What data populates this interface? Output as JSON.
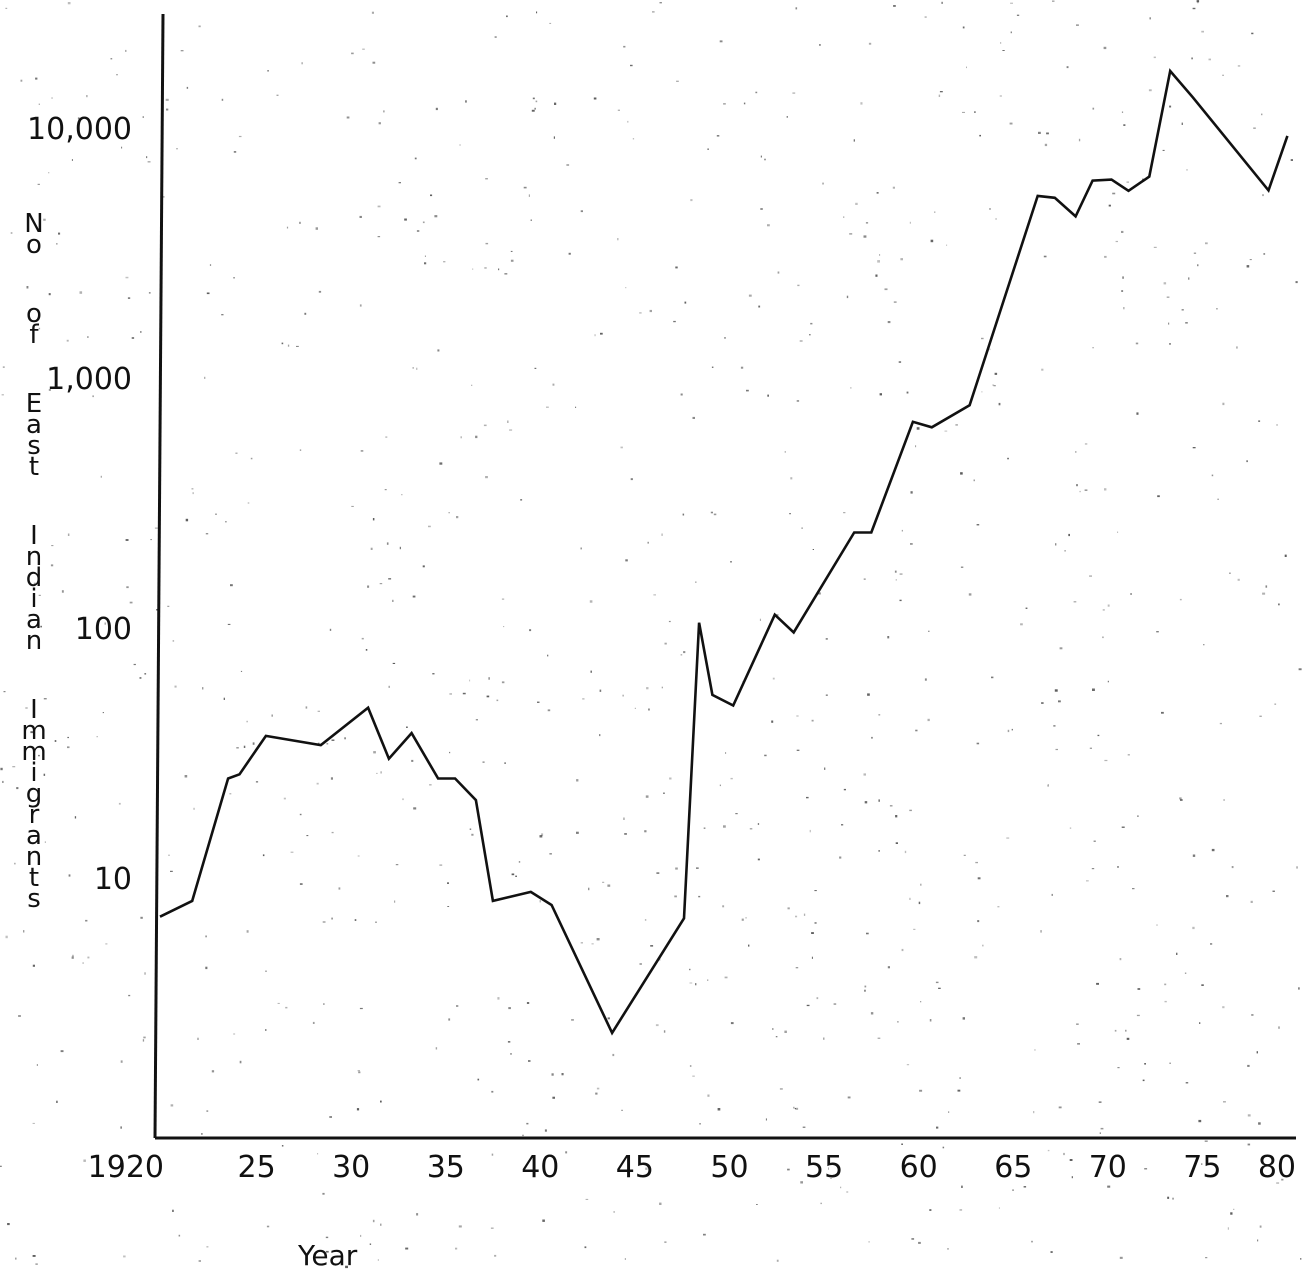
{
  "chart_data": {
    "type": "line",
    "title": "",
    "xlabel": "Year",
    "ylabel": "No of East Indian Immigrants",
    "yscale": "log",
    "xlim": [
      1920,
      1980
    ],
    "ylim": [
      1.5,
      14000
    ],
    "grid": false,
    "legend": "none",
    "line_color": "#111111",
    "x_ticks": [
      1920,
      1925,
      1930,
      1935,
      1940,
      1945,
      1950,
      1955,
      1960,
      1965,
      1970,
      1975,
      1980
    ],
    "x_tick_labels": [
      "1920",
      "25",
      "30",
      "35",
      "40",
      "45",
      "50",
      "55",
      "60",
      "65",
      "70",
      "75",
      "80"
    ],
    "y_ticks": [
      10,
      100,
      1000,
      10000
    ],
    "y_tick_labels": [
      "10",
      "100",
      "1,000",
      "10,000"
    ],
    "series": [
      {
        "x": [
          1920,
          1921.7,
          1923.6,
          1924.2,
          1925.6,
          1928.5,
          1931,
          1932.1,
          1933.3,
          1934.7,
          1935.6,
          1936.7,
          1937.6,
          1939.6,
          1940.7,
          1943.9,
          1947.7,
          1948.5,
          1949.2,
          1950.3,
          1952.5,
          1953.5,
          1956.7,
          1957.6,
          1959.8,
          1960.8,
          1962.8,
          1966.4,
          1967.3,
          1968.4,
          1969.3,
          1970.3,
          1971.2,
          1972.3,
          1973.4,
          1974.6,
          1978.6,
          1979.6
        ],
        "y": [
          7,
          8.1,
          25,
          26,
          37,
          34,
          48,
          30,
          38,
          25,
          25,
          20.5,
          8.1,
          8.8,
          7.8,
          2.4,
          6.9,
          105,
          54,
          49,
          113,
          96,
          241,
          241,
          668,
          635,
          778,
          5350,
          5260,
          4430,
          6160,
          6220,
          5610,
          6390,
          16900,
          13270,
          5630,
          9300
        ]
      }
    ]
  }
}
